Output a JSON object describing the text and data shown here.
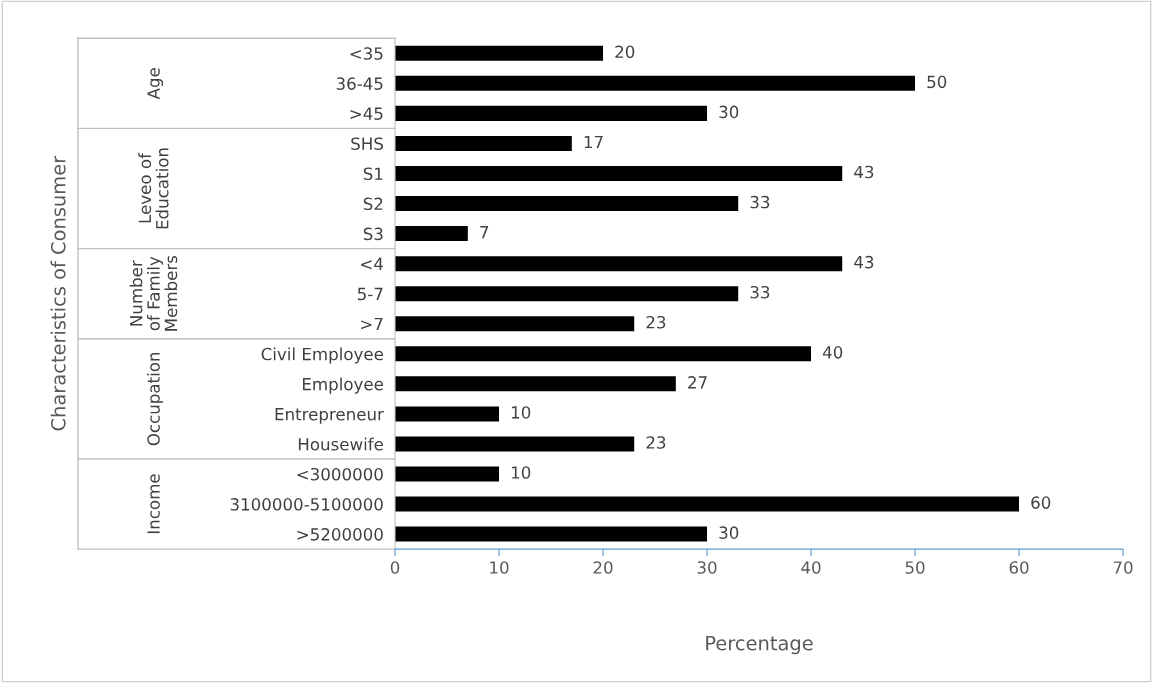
{
  "chart_data": {
    "type": "bar",
    "orientation": "horizontal",
    "xlabel": "Percentage",
    "categories": [
      "<35",
      "36-45",
      ">45",
      "SHS",
      "S1",
      "S2",
      "S3",
      "<4",
      "5-7",
      ">7",
      "Civil Employee",
      "Employee",
      "Entrepreneur",
      "Housewife",
      "<3000000",
      "3100000-5100000",
      ">5200000"
    ],
    "values": [
      20,
      50,
      30,
      17,
      43,
      33,
      7,
      43,
      33,
      23,
      40,
      27,
      10,
      23,
      10,
      60,
      30
    ],
    "color": "#000000",
    "data_labels": true,
    "xlim": [
      0,
      70
    ],
    "xticks": [
      0,
      10,
      20,
      30,
      40,
      50,
      60,
      70
    ],
    "grid": false,
    "legend": false,
    "annotations": [
      "Age",
      "Leveo of\nEducation",
      "Number\nof Family\nMembers",
      "Occupation",
      "Income",
      "Characteristics of Consumer"
    ]
  }
}
